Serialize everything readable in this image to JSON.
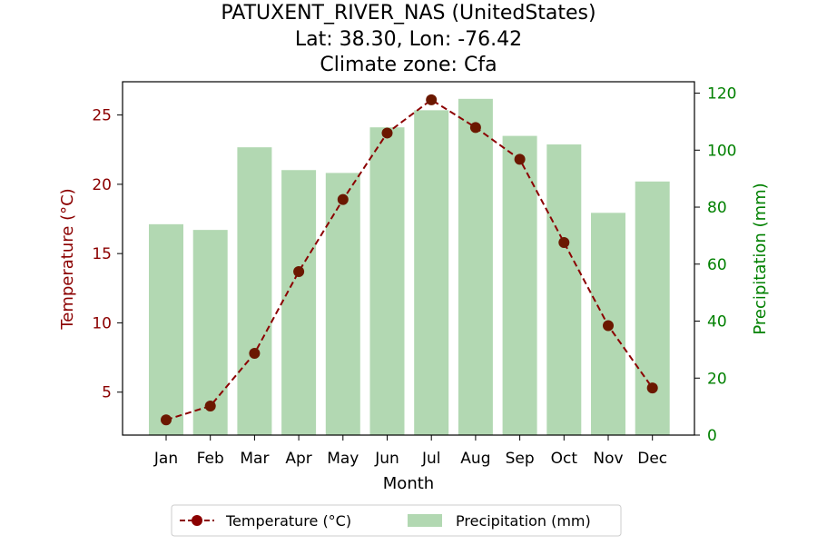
{
  "chart_data": {
    "type": "bar+line",
    "title_lines": [
      "PATUXENT_RIVER_NAS (UnitedStates)",
      "Lat: 38.30, Lon: -76.42",
      "Climate zone: Cfa"
    ],
    "categories": [
      "Jan",
      "Feb",
      "Mar",
      "Apr",
      "May",
      "Jun",
      "Jul",
      "Aug",
      "Sep",
      "Oct",
      "Nov",
      "Dec"
    ],
    "xlabel": "Month",
    "temperature": {
      "name": "Temperature (°C)",
      "values": [
        3.0,
        4.0,
        7.8,
        13.7,
        18.9,
        23.7,
        26.1,
        24.1,
        21.8,
        15.8,
        9.8,
        5.3
      ],
      "ylabel": "Temperature (°C)",
      "ylim": [
        1.9,
        27.4
      ],
      "ticks": [
        5,
        10,
        15,
        20,
        25
      ],
      "color": "#8b0000",
      "marker_color": "#6b1800"
    },
    "precipitation": {
      "name": "Precipitation (mm)",
      "values": [
        74,
        72,
        101,
        93,
        92,
        108,
        114,
        118,
        105,
        102,
        78,
        89
      ],
      "ylabel": "Precipitation (mm)",
      "ylim": [
        0,
        124
      ],
      "ticks": [
        0,
        20,
        40,
        60,
        80,
        100,
        120
      ],
      "color": "#b2d8b2",
      "axis_color": "#008000"
    },
    "legend": {
      "location": "bottom-center",
      "entries": [
        "Temperature (°C)",
        "Precipitation (mm)"
      ]
    }
  }
}
